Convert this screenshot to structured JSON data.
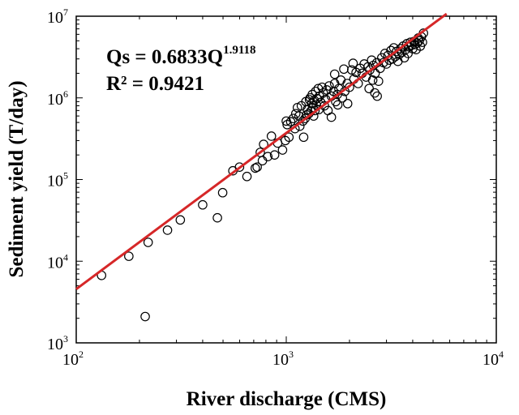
{
  "chart_data": {
    "type": "scatter",
    "title": "",
    "xlabel": "River discharge (CMS)",
    "ylabel": "Sediment yield (T/day)",
    "x_scale": "log",
    "y_scale": "log",
    "xlim": [
      100,
      10000
    ],
    "ylim": [
      1000,
      10000000
    ],
    "x_ticks": [
      {
        "base": "10",
        "exp": "2",
        "value": 100
      },
      {
        "base": "10",
        "exp": "3",
        "value": 1000
      },
      {
        "base": "10",
        "exp": "4",
        "value": 10000
      }
    ],
    "y_ticks": [
      {
        "base": "10",
        "exp": "3",
        "value": 1000
      },
      {
        "base": "10",
        "exp": "4",
        "value": 10000
      },
      {
        "base": "10",
        "exp": "5",
        "value": 100000
      },
      {
        "base": "10",
        "exp": "6",
        "value": 1000000
      },
      {
        "base": "10",
        "exp": "7",
        "value": 10000000
      }
    ],
    "grid": false,
    "annotation": {
      "equation_main": "Qs = 0.6833Q",
      "equation_exp": "1.9118",
      "r2": "R² = 0.9421"
    },
    "fit": {
      "a": 0.6833,
      "b": 1.9118,
      "color": "#d62728",
      "x_range": [
        100,
        5800
      ]
    },
    "marker": {
      "shape": "open-circle",
      "color": "#000000"
    },
    "points": [
      [
        132,
        6700
      ],
      [
        178,
        11500
      ],
      [
        213,
        2100
      ],
      [
        220,
        17000
      ],
      [
        272,
        24000
      ],
      [
        313,
        32000
      ],
      [
        400,
        49000
      ],
      [
        470,
        34000
      ],
      [
        498,
        69000
      ],
      [
        557,
        128000
      ],
      [
        599,
        142000
      ],
      [
        650,
        109000
      ],
      [
        712,
        138000
      ],
      [
        727,
        142000
      ],
      [
        752,
        215000
      ],
      [
        770,
        170000
      ],
      [
        780,
        270000
      ],
      [
        817,
        191000
      ],
      [
        850,
        340000
      ],
      [
        880,
        200000
      ],
      [
        910,
        280000
      ],
      [
        960,
        230000
      ],
      [
        990,
        300000
      ],
      [
        1000,
        520000
      ],
      [
        1010,
        470000
      ],
      [
        1030,
        330000
      ],
      [
        1050,
        510000
      ],
      [
        1080,
        560000
      ],
      [
        1100,
        420000
      ],
      [
        1110,
        640000
      ],
      [
        1130,
        760000
      ],
      [
        1150,
        600000
      ],
      [
        1160,
        450000
      ],
      [
        1180,
        800000
      ],
      [
        1200,
        520000
      ],
      [
        1210,
        330000
      ],
      [
        1230,
        560000
      ],
      [
        1240,
        900000
      ],
      [
        1250,
        620000
      ],
      [
        1260,
        720000
      ],
      [
        1280,
        640000
      ],
      [
        1290,
        950000
      ],
      [
        1300,
        1000000
      ],
      [
        1310,
        690000
      ],
      [
        1320,
        850000
      ],
      [
        1330,
        1100000
      ],
      [
        1340,
        760000
      ],
      [
        1350,
        600000
      ],
      [
        1360,
        930000
      ],
      [
        1370,
        700000
      ],
      [
        1380,
        1200000
      ],
      [
        1390,
        820000
      ],
      [
        1400,
        980000
      ],
      [
        1420,
        1300000
      ],
      [
        1430,
        720000
      ],
      [
        1440,
        1050000
      ],
      [
        1460,
        880000
      ],
      [
        1480,
        1350000
      ],
      [
        1500,
        1150000
      ],
      [
        1520,
        800000
      ],
      [
        1540,
        960000
      ],
      [
        1560,
        1250000
      ],
      [
        1580,
        700000
      ],
      [
        1600,
        1400000
      ],
      [
        1640,
        1050000
      ],
      [
        1680,
        1200000
      ],
      [
        1700,
        1500000
      ],
      [
        1720,
        900000
      ],
      [
        1750,
        1100000
      ],
      [
        1780,
        1300000
      ],
      [
        1820,
        1650000
      ],
      [
        1850,
        1000000
      ],
      [
        1900,
        1200000
      ],
      [
        1950,
        1500000
      ],
      [
        2000,
        1350000
      ],
      [
        2050,
        2200000
      ],
      [
        2100,
        1700000
      ],
      [
        2150,
        2050000
      ],
      [
        2200,
        1500000
      ],
      [
        2250,
        2300000
      ],
      [
        2300,
        2000000
      ],
      [
        2350,
        2600000
      ],
      [
        2400,
        1800000
      ],
      [
        2450,
        2400000
      ],
      [
        2500,
        2200000
      ],
      [
        2550,
        2900000
      ],
      [
        2600,
        2500000
      ],
      [
        2650,
        2000000
      ],
      [
        2700,
        2700000
      ],
      [
        2750,
        1600000
      ],
      [
        2800,
        2300000
      ],
      [
        2850,
        3100000
      ],
      [
        2900,
        2700000
      ],
      [
        2950,
        3500000
      ],
      [
        3000,
        2600000
      ],
      [
        3050,
        3300000
      ],
      [
        3100,
        2900000
      ],
      [
        3150,
        3800000
      ],
      [
        3200,
        3000000
      ],
      [
        3250,
        4100000
      ],
      [
        3300,
        3200000
      ],
      [
        3350,
        3700000
      ],
      [
        3400,
        2800000
      ],
      [
        3450,
        3400000
      ],
      [
        3500,
        4000000
      ],
      [
        3550,
        3600000
      ],
      [
        3600,
        4300000
      ],
      [
        3650,
        3100000
      ],
      [
        3700,
        3900000
      ],
      [
        3750,
        4600000
      ],
      [
        3800,
        3500000
      ],
      [
        3850,
        4200000
      ],
      [
        3900,
        4800000
      ],
      [
        3950,
        4400000
      ],
      [
        4000,
        4000000
      ],
      [
        4050,
        4900000
      ],
      [
        4100,
        4500000
      ],
      [
        4150,
        3900000
      ],
      [
        4200,
        4700000
      ],
      [
        4250,
        5400000
      ],
      [
        4300,
        5000000
      ],
      [
        4350,
        4300000
      ],
      [
        4400,
        5600000
      ],
      [
        4450,
        4800000
      ],
      [
        4500,
        6200000
      ],
      [
        2640,
        1150000
      ],
      [
        2710,
        1050000
      ],
      [
        2480,
        1300000
      ],
      [
        2580,
        1650000
      ],
      [
        1700,
        1950000
      ],
      [
        1880,
        2250000
      ],
      [
        2080,
        2650000
      ],
      [
        1960,
        850000
      ],
      [
        1760,
        820000
      ],
      [
        1640,
        580000
      ]
    ]
  }
}
